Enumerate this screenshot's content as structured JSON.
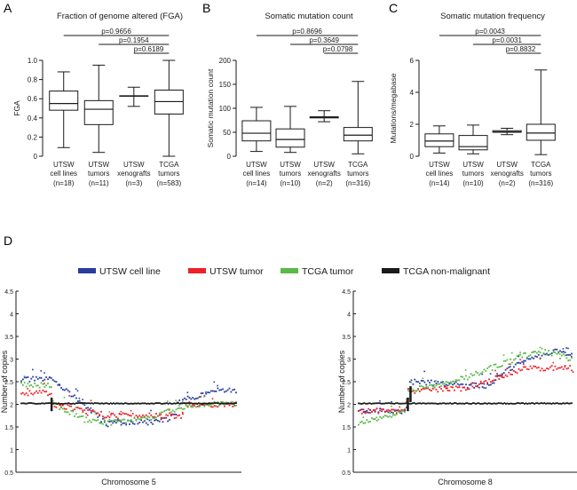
{
  "chart_data": [
    {
      "panel": "A",
      "type": "boxplot",
      "title": "Fraction of genome altered (FGA)",
      "ylabel": "FGA",
      "ylim": [
        0,
        1.0
      ],
      "yticks": [
        "0",
        "0.2",
        "0.4",
        "0.6",
        "0.8",
        "1.0"
      ],
      "ytick_values": [
        0,
        0.2,
        0.4,
        0.6,
        0.8,
        1.0
      ],
      "groups": [
        {
          "label1": "UTSW",
          "label2": "cell lines",
          "n": "(n=18)",
          "min": 0.09,
          "q1": 0.48,
          "median": 0.55,
          "q3": 0.68,
          "max": 0.88
        },
        {
          "label1": "UTSW",
          "label2": "tumors",
          "n": "(n=11)",
          "min": 0.04,
          "q1": 0.33,
          "median": 0.49,
          "q3": 0.58,
          "max": 0.95
        },
        {
          "label1": "UTSW",
          "label2": "xenografts",
          "n": "(n=3)",
          "min": 0.52,
          "q1": 0.63,
          "median": 0.63,
          "q3": 0.63,
          "max": 0.72
        },
        {
          "label1": "TCGA",
          "label2": "tumors",
          "n": "(n=583)",
          "min": 0.0,
          "q1": 0.44,
          "median": 0.57,
          "q3": 0.69,
          "max": 1.0
        }
      ],
      "pvalues": [
        "p=0.9656",
        "p=0.1954",
        "p=0.6189"
      ]
    },
    {
      "panel": "B",
      "type": "boxplot",
      "title": "Somatic mutation count",
      "ylabel": "Somatic mutation count",
      "ylim": [
        0,
        200
      ],
      "yticks": [
        "0",
        "50",
        "100",
        "150",
        "200"
      ],
      "ytick_values": [
        0,
        50,
        100,
        150,
        200
      ],
      "groups": [
        {
          "label1": "UTSW",
          "label2": "cell lines",
          "n": "(n=14)",
          "min": 10,
          "q1": 32,
          "median": 48,
          "q3": 74,
          "max": 102
        },
        {
          "label1": "UTSW",
          "label2": "tumors",
          "n": "(n=10)",
          "min": 8,
          "q1": 19,
          "median": 35,
          "q3": 57,
          "max": 104
        },
        {
          "label1": "UTSW",
          "label2": "xenografts",
          "n": "(n=2)",
          "min": 72,
          "q1": 80,
          "median": 82,
          "q3": 82,
          "max": 95
        },
        {
          "label1": "TCGA",
          "label2": "tumors",
          "n": "(n=316)",
          "min": 5,
          "q1": 32,
          "median": 44,
          "q3": 60,
          "max": 156
        }
      ],
      "pvalues": [
        "p=0.8696",
        "p=0.3649",
        "p=0.0798"
      ]
    },
    {
      "panel": "C",
      "type": "boxplot",
      "title": "Somatic mutation frequency",
      "ylabel": "Mutations/megabase",
      "ylim": [
        0,
        6
      ],
      "yticks": [
        "0",
        "2",
        "4",
        "6"
      ],
      "ytick_values": [
        0,
        2,
        4,
        6
      ],
      "groups": [
        {
          "label1": "UTSW",
          "label2": "cell lines",
          "n": "(n=14)",
          "min": 0.2,
          "q1": 0.6,
          "median": 0.95,
          "q3": 1.4,
          "max": 1.9
        },
        {
          "label1": "UTSW",
          "label2": "tumors",
          "n": "(n=10)",
          "min": 0.15,
          "q1": 0.4,
          "median": 0.6,
          "q3": 1.3,
          "max": 1.95
        },
        {
          "label1": "UTSW",
          "label2": "xenografts",
          "n": "(n=2)",
          "min": 1.35,
          "q1": 1.5,
          "median": 1.52,
          "q3": 1.6,
          "max": 1.75
        },
        {
          "label1": "TCGA",
          "label2": "tumors",
          "n": "(n=316)",
          "min": 0.1,
          "q1": 1.0,
          "median": 1.45,
          "q3": 2.0,
          "max": 5.4
        }
      ],
      "pvalues": [
        "p=0.0043",
        "p=0.0031",
        "p=0.8832"
      ]
    },
    {
      "panel": "D",
      "type": "scatter",
      "ylabel": "Number of copies",
      "ylim": [
        0.5,
        4.5
      ],
      "yticks": [
        "0.5",
        "1",
        "1.5",
        "2",
        "2.5",
        "3",
        "3.5",
        "4",
        "4.5"
      ],
      "ytick_values": [
        0.5,
        1,
        1.5,
        2,
        2.5,
        3,
        3.5,
        4,
        4.5
      ],
      "legend": [
        {
          "name": "UTSW cell line",
          "color": "#283c9c"
        },
        {
          "name": "UTSW tumor",
          "color": "#ee2027"
        },
        {
          "name": "TCGA tumor",
          "color": "#5ab947"
        },
        {
          "name": "TCGA non-malignant",
          "color": "#1a1a1a"
        }
      ],
      "charts": [
        {
          "xlabel": "Chromosome 5",
          "series": [
            {
              "name": "UTSW cell line",
              "x": [
                0.0,
                0.14,
                0.15,
                0.4,
                0.41,
                0.62,
                0.63,
                0.72,
                0.73,
                0.86,
                0.87,
                1.0
              ],
              "y": [
                2.55,
                2.55,
                2.55,
                1.55,
                1.6,
                1.6,
                1.6,
                1.75,
                2.05,
                2.25,
                2.3,
                2.3
              ]
            },
            {
              "name": "UTSW tumor",
              "x": [
                0.0,
                0.14,
                0.15,
                0.4,
                0.41,
                0.75,
                0.76,
                1.0
              ],
              "y": [
                2.25,
                2.25,
                2.0,
                1.75,
                1.75,
                1.75,
                2.0,
                2.0
              ]
            },
            {
              "name": "TCGA tumor",
              "x": [
                0.0,
                0.14,
                0.15,
                0.3,
                0.42,
                0.6,
                0.72,
                0.85,
                1.0
              ],
              "y": [
                2.45,
                2.4,
                2.0,
                1.65,
                1.6,
                1.7,
                1.9,
                2.0,
                2.0
              ]
            },
            {
              "name": "TCGA non-malignant",
              "x": [
                0.0,
                1.0
              ],
              "y": [
                2.02,
                2.02
              ]
            }
          ]
        },
        {
          "xlabel": "Chromosome 8",
          "series": [
            {
              "name": "UTSW cell line",
              "x": [
                0.0,
                0.22,
                0.23,
                0.24,
                0.6,
                0.7,
                0.8,
                0.95,
                1.0
              ],
              "y": [
                1.85,
                1.85,
                2.05,
                2.5,
                2.4,
                2.75,
                3.0,
                3.2,
                3.1
              ]
            },
            {
              "name": "UTSW tumor",
              "x": [
                0.0,
                0.22,
                0.23,
                0.5,
                0.65,
                0.8,
                1.0
              ],
              "y": [
                1.85,
                1.85,
                2.3,
                2.35,
                2.6,
                2.8,
                2.8
              ]
            },
            {
              "name": "TCGA tumor",
              "x": [
                0.0,
                0.1,
                0.22,
                0.23,
                0.45,
                0.65,
                0.85,
                1.0
              ],
              "y": [
                1.6,
                1.7,
                1.85,
                2.3,
                2.5,
                2.85,
                3.2,
                3.0
              ]
            },
            {
              "name": "TCGA non-malignant",
              "x": [
                0.0,
                1.0
              ],
              "y": [
                2.02,
                2.02
              ]
            }
          ]
        }
      ]
    }
  ]
}
